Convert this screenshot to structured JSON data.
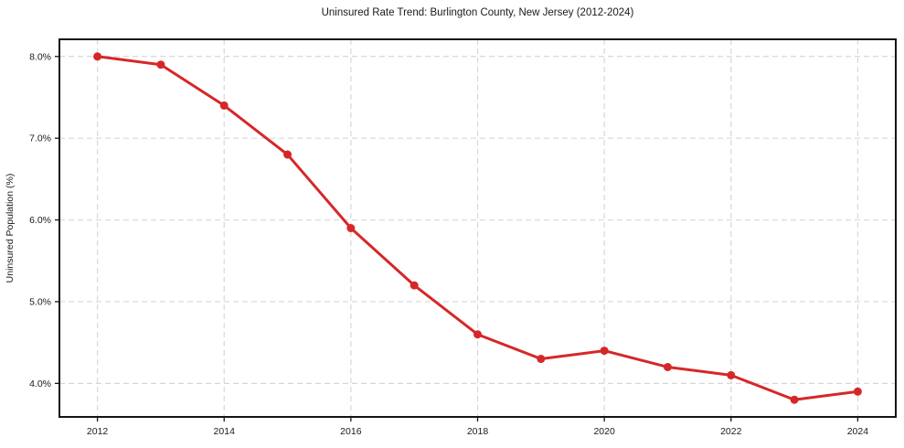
{
  "chart_data": {
    "type": "line",
    "title": "Uninsured Rate Trend: Burlington County, New Jersey (2012-2024)",
    "xlabel": "",
    "ylabel": "Uninsured Population (%)",
    "x": [
      2012,
      2013,
      2014,
      2015,
      2016,
      2017,
      2018,
      2019,
      2020,
      2021,
      2022,
      2023,
      2024
    ],
    "series": [
      {
        "name": "Uninsured Population (%)",
        "values": [
          8.0,
          7.9,
          7.4,
          6.8,
          5.9,
          5.2,
          4.6,
          4.3,
          4.4,
          4.2,
          4.1,
          3.8,
          3.9
        ]
      }
    ],
    "x_ticks": [
      2012,
      2014,
      2016,
      2018,
      2020,
      2022,
      2024
    ],
    "x_tick_labels": [
      "2012",
      "2014",
      "2016",
      "2018",
      "2020",
      "2022",
      "2024"
    ],
    "y_ticks": [
      4,
      5,
      6,
      7,
      8
    ],
    "y_tick_labels": [
      "4.0%",
      "5.0%",
      "6.0%",
      "7.0%",
      "8.0%"
    ],
    "xlim": [
      2011.4,
      2024.6
    ],
    "ylim": [
      3.59,
      8.21
    ],
    "grid": true,
    "legend_position": "none",
    "line_color": "#d62728",
    "marker_color": "#d62728",
    "grid_color": "#d8d8d8"
  }
}
